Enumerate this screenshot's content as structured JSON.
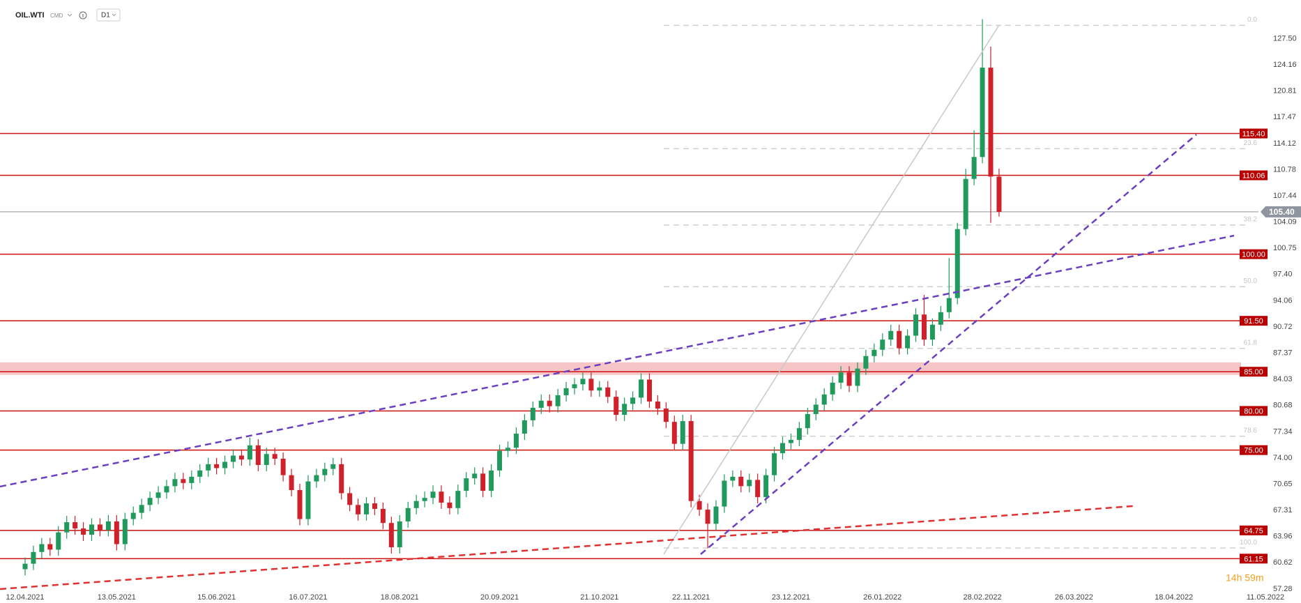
{
  "header": {
    "symbol": "OIL.WTI",
    "market": "CMD",
    "interval": "D1"
  },
  "chart_data": {
    "type": "candlestick",
    "categories": [
      "12.04.2021",
      null,
      null,
      null,
      null,
      null,
      null,
      null,
      null,
      null,
      null,
      "13.05.2021",
      null,
      null,
      null,
      null,
      null,
      null,
      null,
      null,
      null,
      null,
      null,
      "15.06.2021",
      null,
      null,
      null,
      null,
      null,
      null,
      null,
      null,
      null,
      null,
      "16.07.2021",
      null,
      null,
      null,
      null,
      null,
      null,
      null,
      null,
      null,
      null,
      "18.08.2021",
      null,
      null,
      null,
      null,
      null,
      null,
      null,
      null,
      null,
      null,
      null,
      "20.09.2021",
      null,
      null,
      null,
      null,
      null,
      null,
      null,
      null,
      null,
      null,
      null,
      "21.10.2021",
      null,
      null,
      null,
      null,
      null,
      null,
      null,
      null,
      null,
      null,
      "22.11.2021",
      null,
      null,
      null,
      null,
      null,
      null,
      null,
      null,
      null,
      null,
      null,
      "23.12.2021",
      null,
      null,
      null,
      null,
      null,
      null,
      null,
      null,
      null,
      null,
      "26.01.2022",
      null,
      null,
      null,
      null,
      null,
      null,
      null,
      null,
      null,
      null,
      null,
      "28.02.2022",
      null,
      null,
      null,
      null,
      null,
      null,
      null,
      null,
      null,
      null,
      "26.03.2022",
      null,
      null,
      null,
      null,
      null,
      null,
      null,
      null,
      null,
      null,
      null,
      "18.04.2022",
      null,
      null,
      null,
      null,
      null,
      null,
      null,
      null,
      null,
      null,
      "11.05.2022"
    ],
    "open": [
      59.8,
      60.5,
      62.0,
      63.0,
      62.3,
      64.5,
      65.8,
      65.0,
      64.2,
      65.5,
      64.8,
      65.9,
      63.0,
      66.2,
      67.0,
      68.0,
      68.9,
      69.6,
      70.4,
      71.3,
      70.8,
      71.6,
      72.4,
      73.2,
      72.7,
      73.5,
      74.3,
      73.8,
      75.6,
      73.1,
      74.5,
      73.9,
      71.8,
      69.9,
      66.2,
      71.0,
      71.8,
      72.6,
      73.2,
      69.5,
      68.0,
      66.8,
      68.2,
      67.5,
      65.7,
      62.6,
      65.9,
      67.6,
      68.5,
      68.9,
      69.7,
      68.3,
      67.6,
      69.8,
      71.4,
      72.0,
      69.8,
      72.4,
      74.9,
      75.3,
      77.1,
      78.8,
      80.4,
      81.3,
      80.6,
      82.0,
      82.9,
      83.4,
      84.1,
      82.6,
      83.0,
      81.8,
      79.5,
      80.9,
      81.7,
      84.0,
      81.2,
      80.3,
      78.6,
      75.8,
      78.7,
      68.5,
      67.4,
      65.6,
      67.8,
      71.1,
      71.6,
      70.4,
      71.2,
      69.0,
      71.8,
      74.6,
      75.9,
      76.3,
      77.8,
      79.6,
      80.8,
      82.1,
      83.6,
      84.9,
      83.2,
      85.4,
      87.0,
      87.8,
      89.1,
      90.2,
      88.0,
      89.6,
      92.3,
      89.1,
      91.0,
      92.6,
      94.4,
      103.2,
      109.6,
      112.4,
      123.8,
      109.9,
      null,
      null,
      null,
      null,
      null,
      null,
      null,
      null,
      null,
      null,
      null,
      null,
      null,
      null,
      null,
      null,
      null,
      null,
      null,
      null,
      null,
      null,
      null,
      null,
      null,
      null,
      null,
      null,
      null,
      null,
      null,
      null
    ],
    "high": [
      61.3,
      62.8,
      63.8,
      63.8,
      65.3,
      66.6,
      66.6,
      65.8,
      66.3,
      66.3,
      66.7,
      66.7,
      67.0,
      67.8,
      68.8,
      69.7,
      70.4,
      71.2,
      72.1,
      72.1,
      72.4,
      73.2,
      74.0,
      74.0,
      74.3,
      75.1,
      75.1,
      76.6,
      76.4,
      75.3,
      75.3,
      74.7,
      72.6,
      70.7,
      71.8,
      72.6,
      73.4,
      74.0,
      74.0,
      70.3,
      68.8,
      69.0,
      69.0,
      68.3,
      66.5,
      66.7,
      68.4,
      69.3,
      69.7,
      70.5,
      70.5,
      69.1,
      70.6,
      72.2,
      72.8,
      72.8,
      73.2,
      75.7,
      76.1,
      77.9,
      79.6,
      81.2,
      82.1,
      82.1,
      82.8,
      83.7,
      84.2,
      84.9,
      84.9,
      83.8,
      83.8,
      82.6,
      81.7,
      82.5,
      84.8,
      84.8,
      82.0,
      81.1,
      79.4,
      79.5,
      79.5,
      69.3,
      68.2,
      68.6,
      71.9,
      72.4,
      72.4,
      72.0,
      72.0,
      72.6,
      75.4,
      76.7,
      77.1,
      78.6,
      80.4,
      81.6,
      82.9,
      84.4,
      85.7,
      85.7,
      86.2,
      87.8,
      88.6,
      89.9,
      91.0,
      91.0,
      90.4,
      93.1,
      94.8,
      91.8,
      93.4,
      99.5,
      104.0,
      110.9,
      115.8,
      130.0,
      126.5,
      110.9,
      null,
      null,
      null,
      null,
      null,
      null,
      null,
      null,
      null,
      null,
      null,
      null,
      null,
      null,
      null,
      null,
      null,
      null,
      null,
      null,
      null,
      null,
      null,
      null,
      null,
      null,
      null,
      null,
      null,
      null,
      null,
      null
    ],
    "low": [
      59.0,
      59.7,
      61.2,
      61.5,
      61.5,
      63.7,
      64.2,
      63.4,
      63.4,
      64.0,
      64.0,
      62.2,
      62.2,
      65.4,
      66.2,
      67.2,
      68.1,
      68.8,
      69.6,
      70.0,
      70.0,
      70.8,
      71.6,
      71.9,
      71.9,
      72.7,
      73.0,
      73.0,
      72.3,
      72.3,
      73.1,
      71.0,
      69.1,
      65.4,
      65.4,
      70.2,
      71.0,
      71.8,
      68.7,
      67.2,
      66.0,
      66.0,
      66.7,
      64.9,
      61.8,
      61.8,
      65.1,
      66.8,
      67.7,
      68.1,
      67.5,
      66.8,
      66.8,
      69.0,
      70.6,
      69.0,
      69.0,
      71.6,
      74.1,
      74.5,
      76.3,
      78.0,
      79.6,
      79.8,
      79.8,
      81.2,
      82.1,
      82.6,
      81.8,
      81.8,
      81.0,
      78.7,
      78.7,
      80.1,
      80.9,
      80.4,
      79.5,
      77.8,
      75.0,
      75.0,
      67.7,
      66.6,
      62.5,
      64.8,
      67.0,
      70.3,
      69.6,
      69.6,
      68.2,
      68.2,
      71.0,
      73.8,
      75.1,
      75.5,
      77.0,
      78.8,
      80.0,
      81.3,
      82.8,
      82.4,
      82.4,
      84.6,
      86.2,
      87.0,
      88.3,
      87.2,
      87.2,
      88.8,
      88.3,
      88.3,
      90.2,
      91.8,
      93.6,
      102.4,
      108.8,
      111.6,
      104.0,
      104.8,
      null,
      null,
      null,
      null,
      null,
      null,
      null,
      null,
      null,
      null,
      null,
      null,
      null,
      null,
      null,
      null,
      null,
      null,
      null,
      null,
      null,
      null,
      null,
      null,
      null,
      null,
      null,
      null,
      null,
      null,
      null,
      null
    ],
    "close": [
      60.5,
      62.0,
      63.0,
      62.3,
      64.5,
      65.8,
      65.0,
      64.2,
      65.5,
      64.8,
      65.9,
      63.0,
      66.2,
      67.0,
      68.0,
      68.9,
      69.6,
      70.4,
      71.3,
      70.8,
      71.6,
      72.4,
      73.2,
      72.7,
      73.5,
      74.3,
      73.8,
      75.6,
      73.1,
      74.5,
      73.9,
      71.8,
      69.9,
      66.2,
      71.0,
      71.8,
      72.6,
      73.2,
      69.5,
      68.0,
      66.8,
      68.2,
      67.5,
      65.7,
      62.6,
      65.9,
      67.6,
      68.5,
      68.9,
      69.7,
      68.3,
      67.6,
      69.8,
      71.4,
      72.0,
      69.8,
      72.4,
      74.9,
      75.3,
      77.1,
      78.8,
      80.4,
      81.3,
      80.6,
      82.0,
      82.9,
      83.4,
      84.1,
      82.6,
      83.0,
      81.8,
      79.5,
      80.9,
      81.7,
      84.0,
      81.2,
      80.3,
      78.6,
      75.8,
      78.7,
      68.5,
      67.4,
      65.6,
      67.8,
      71.1,
      71.6,
      70.4,
      71.2,
      69.0,
      71.8,
      74.6,
      75.9,
      76.3,
      77.8,
      79.6,
      80.8,
      82.1,
      83.6,
      84.9,
      83.2,
      85.4,
      87.0,
      87.8,
      89.1,
      90.2,
      88.0,
      89.6,
      92.3,
      89.1,
      91.0,
      92.6,
      94.4,
      103.2,
      109.6,
      112.4,
      123.8,
      109.9,
      105.4,
      null,
      null,
      null,
      null,
      null,
      null,
      null,
      null,
      null,
      null,
      null,
      null,
      null,
      null,
      null,
      null,
      null,
      null,
      null,
      null,
      null,
      null,
      null,
      null,
      null,
      null,
      null,
      null,
      null,
      null,
      null,
      null
    ],
    "up_color": "#1f9a5c",
    "down_color": "#d0202a",
    "ylim": [
      57.0,
      131.1
    ],
    "yticks": [
      {
        "value": 127.5,
        "label": "127.50"
      },
      124.16,
      120.81,
      117.47,
      114.12,
      110.78,
      107.44,
      104.09,
      100.75,
      {
        "value": 97.4,
        "label": "97.40"
      },
      94.06,
      90.72,
      87.37,
      84.03,
      80.68,
      77.34,
      {
        "value": 74,
        "label": "74.00"
      },
      70.65,
      67.31,
      63.96,
      60.62,
      57.28
    ],
    "levels": [
      {
        "value": 115.4,
        "label": "115.40"
      },
      {
        "value": 110.06,
        "label": "110.06"
      },
      {
        "value": 100,
        "label": "100.00"
      },
      {
        "value": 91.5,
        "label": "91.50"
      },
      {
        "value": 85,
        "label": "85.00"
      },
      {
        "value": 80,
        "label": "80.00"
      },
      {
        "value": 75,
        "label": "75.00"
      },
      {
        "value": 64.75,
        "label": "64.75"
      },
      {
        "value": 61.15,
        "label": "61.15"
      }
    ],
    "level_color": "#cc1111",
    "zone": [
      84.6,
      86.2
    ],
    "fibonacci": [
      {
        "value": 129.2,
        "label": "0.0"
      },
      {
        "value": 113.46,
        "label": "23.6"
      },
      {
        "value": 103.72,
        "label": "38.2"
      },
      {
        "value": 95.85,
        "label": "50.0"
      },
      {
        "value": 87.98,
        "label": "61.8"
      },
      {
        "value": 76.77,
        "label": "78.6"
      },
      {
        "value": 62.5,
        "label": "100.0"
      }
    ],
    "last_price": {
      "value": 105.4,
      "label": "105.40"
    },
    "countdown": "14h 59m"
  }
}
